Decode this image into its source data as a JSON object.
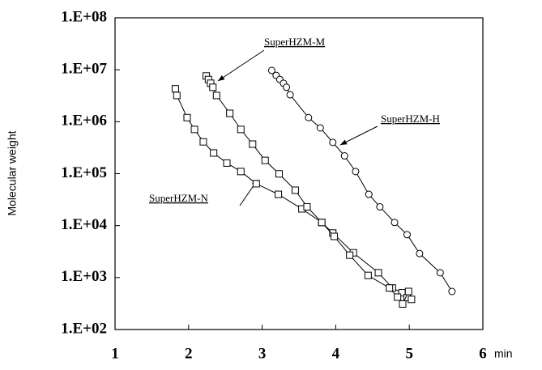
{
  "chart_data": {
    "type": "line",
    "y_label": "Molecular weight",
    "x_label": "min",
    "ylog": true,
    "xlim": [
      1,
      6
    ],
    "xticks": [
      1,
      2,
      3,
      4,
      5,
      6
    ],
    "ylim": [
      100,
      100000000
    ],
    "yticks": [
      {
        "value": 100,
        "label": "1.E+02"
      },
      {
        "value": 1000,
        "label": "1.E+03"
      },
      {
        "value": 10000,
        "label": "1.E+04"
      },
      {
        "value": 100000,
        "label": "1.E+05"
      },
      {
        "value": 1000000,
        "label": "1.E+06"
      },
      {
        "value": 10000000,
        "label": "1.E+07"
      },
      {
        "value": 100000000,
        "label": "1.E+08"
      }
    ],
    "series": [
      {
        "name": "SuperHZM-N",
        "marker": "square",
        "color": "#000000",
        "x": [
          1.82,
          1.84,
          1.98,
          2.08,
          2.2,
          2.34,
          2.52,
          2.71,
          2.92,
          3.22,
          3.54,
          3.81,
          3.96,
          4.24,
          4.58,
          4.77,
          4.9,
          4.97,
          5.03
        ],
        "values": [
          4300000,
          3200000,
          1200000,
          710000,
          410000,
          250000,
          160000,
          110000,
          64000,
          40000,
          21000,
          11500,
          7200,
          3000,
          1240,
          630,
          510,
          410,
          380
        ]
      },
      {
        "name": "SuperHZM-M",
        "marker": "square",
        "color": "#000000",
        "x": [
          2.24,
          2.27,
          2.3,
          2.33,
          2.38,
          2.56,
          2.71,
          2.87,
          3.04,
          3.23,
          3.45,
          3.61,
          3.81,
          3.98,
          4.19,
          4.44,
          4.73,
          4.84,
          4.91,
          4.99
        ],
        "values": [
          7600000,
          6500000,
          5500000,
          4600000,
          3200000,
          1450000,
          710000,
          370000,
          180000,
          99000,
          48000,
          23000,
          11500,
          6200,
          2700,
          1100,
          630,
          420,
          310,
          540
        ]
      },
      {
        "name": "SuperHZM-H",
        "marker": "circle",
        "color": "#000000",
        "x": [
          3.13,
          3.19,
          3.24,
          3.29,
          3.33,
          3.38,
          3.63,
          3.79,
          3.96,
          4.12,
          4.27,
          4.45,
          4.6,
          4.8,
          4.97,
          5.14,
          5.42,
          5.58
        ],
        "values": [
          9700000,
          7800000,
          6500000,
          5500000,
          4600000,
          3300000,
          1200000,
          760000,
          400000,
          220000,
          110000,
          40000,
          23000,
          11500,
          6700,
          2900,
          1240,
          540
        ]
      }
    ]
  }
}
